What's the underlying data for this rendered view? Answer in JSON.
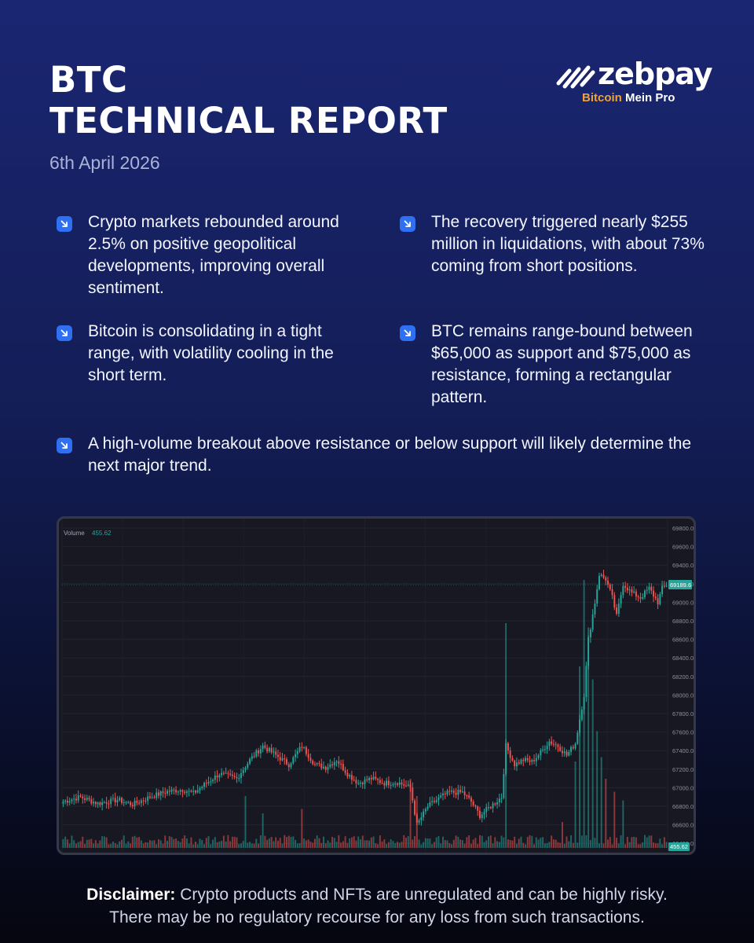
{
  "header": {
    "title_line1": "BTC",
    "title_line2": "TECHNICAL REPORT",
    "date": "6th April 2026"
  },
  "logo": {
    "wordmark": "zebpay",
    "tagline_accent": "Bitcoin",
    "tagline_rest": " Mein Pro"
  },
  "bullets": [
    "Crypto markets rebounded around 2.5% on positive geopolitical developments, improving overall sentiment.",
    "The recovery triggered nearly $255 million in liquidations, with about 73% coming from short positions.",
    "Bitcoin is consolidating in a tight range, with volatility cooling in the short term.",
    "BTC remains range-bound between $65,000 as support and $75,000 as resistance, forming a rectangular pattern.",
    "A high-volume breakout above resistance or below support will likely determine the next major trend."
  ],
  "disclaimer": {
    "label": "Disclaimer:",
    "line1": " Crypto products and NFTs are unregulated and can be highly risky.",
    "line2": "There may be no regulatory recourse for any loss from such transactions."
  },
  "colors": {
    "accent_blue": "#2f6ff2",
    "logo_orange": "#f0a437",
    "up": "#26a69a",
    "down": "#ef5350"
  },
  "chart_data": {
    "type": "candlestick",
    "ylim": [
      66300,
      69850
    ],
    "y_ticks": [
      "69800.0",
      "69600.0",
      "69400.0",
      "69200.0",
      "69000.0",
      "68800.0",
      "68600.0",
      "68400.0",
      "68200.0",
      "68000.0",
      "67800.0",
      "67600.0",
      "67400.0",
      "67200.0",
      "67000.0",
      "66800.0",
      "66600.0",
      "66400.0"
    ],
    "last_price": 69189.6,
    "last_price_label": "69189.6",
    "volume_label": "Volume",
    "volume_value": "455.62",
    "volume_badge": "455.62",
    "close_anchors": [
      [
        0,
        66850
      ],
      [
        8,
        66900
      ],
      [
        16,
        66830
      ],
      [
        25,
        66870
      ],
      [
        32,
        66820
      ],
      [
        40,
        66900
      ],
      [
        48,
        66960
      ],
      [
        55,
        66980
      ],
      [
        60,
        66940
      ],
      [
        66,
        67050
      ],
      [
        72,
        67150
      ],
      [
        80,
        67100
      ],
      [
        86,
        67300
      ],
      [
        92,
        67450
      ],
      [
        98,
        67350
      ],
      [
        104,
        67250
      ],
      [
        110,
        67450
      ],
      [
        116,
        67250
      ],
      [
        121,
        67220
      ],
      [
        126,
        67300
      ],
      [
        131,
        67150
      ],
      [
        136,
        67050
      ],
      [
        142,
        67100
      ],
      [
        148,
        67050
      ],
      [
        154,
        67060
      ],
      [
        160,
        67000
      ],
      [
        163,
        66600
      ],
      [
        168,
        66800
      ],
      [
        174,
        66900
      ],
      [
        178,
        66950
      ],
      [
        184,
        66950
      ],
      [
        188,
        66850
      ],
      [
        192,
        66700
      ],
      [
        197,
        66800
      ],
      [
        202,
        66900
      ],
      [
        204,
        67450
      ],
      [
        208,
        67250
      ],
      [
        212,
        67300
      ],
      [
        216,
        67280
      ],
      [
        220,
        67380
      ],
      [
        224,
        67500
      ],
      [
        228,
        67450
      ],
      [
        232,
        67350
      ],
      [
        236,
        67480
      ],
      [
        240,
        68000
      ],
      [
        242,
        68600
      ],
      [
        245,
        69000
      ],
      [
        247,
        69300
      ],
      [
        250,
        69250
      ],
      [
        253,
        69050
      ],
      [
        255,
        68850
      ],
      [
        258,
        69200
      ],
      [
        262,
        69100
      ],
      [
        266,
        69050
      ],
      [
        270,
        69150
      ],
      [
        274,
        69000
      ],
      [
        276,
        69150
      ],
      [
        278,
        69190
      ]
    ],
    "volume_spikes": [
      [
        84,
        120
      ],
      [
        92,
        80
      ],
      [
        110,
        90
      ],
      [
        160,
        160
      ],
      [
        163,
        120
      ],
      [
        204,
        520
      ],
      [
        230,
        60
      ],
      [
        236,
        200
      ],
      [
        238,
        420
      ],
      [
        240,
        620
      ],
      [
        242,
        510
      ],
      [
        244,
        390
      ],
      [
        246,
        270
      ],
      [
        248,
        210
      ],
      [
        250,
        160
      ],
      [
        254,
        130
      ],
      [
        258,
        110
      ]
    ],
    "n_candles": 279
  }
}
